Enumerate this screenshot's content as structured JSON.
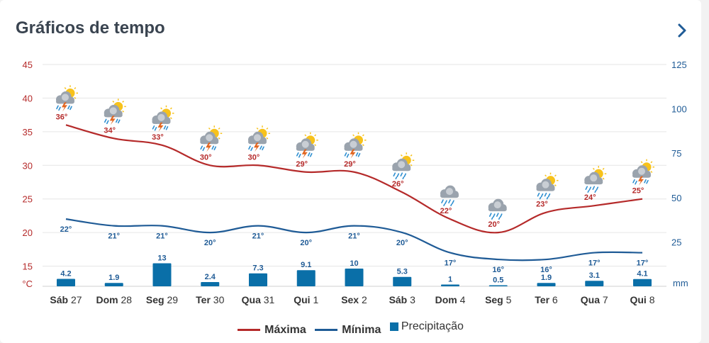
{
  "header": {
    "title": "Gráficos de tempo",
    "next_icon": "chevron-right-icon"
  },
  "colors": {
    "max": "#b52a2a",
    "min": "#1f5b96",
    "precip": "#0a6fa8",
    "axis_left": "#b52a2a",
    "axis_right": "#1f5b96"
  },
  "chart_data": {
    "type": "line",
    "categories": [
      "Sáb 27",
      "Dom 28",
      "Seg 29",
      "Ter 30",
      "Qua 31",
      "Qui 1",
      "Sex 2",
      "Sáb 3",
      "Dom 4",
      "Seg 5",
      "Ter 6",
      "Qua 7",
      "Qui 8"
    ],
    "series": [
      {
        "name": "Máxima",
        "type": "line",
        "axis": "left",
        "values": [
          36,
          34,
          33,
          30,
          30,
          29,
          29,
          26,
          22,
          20,
          23,
          24,
          25
        ],
        "labels": [
          "36°",
          "34°",
          "33°",
          "30°",
          "30°",
          "29°",
          "29°",
          "26°",
          "22°",
          "20°",
          "23°",
          "24°",
          "25°"
        ]
      },
      {
        "name": "Mínima",
        "type": "line",
        "axis": "left",
        "values": [
          22,
          21,
          21,
          20,
          21,
          20,
          21,
          20,
          17,
          16,
          16,
          17,
          17
        ],
        "labels": [
          "22°",
          "21°",
          "21°",
          "20°",
          "21°",
          "20°",
          "21°",
          "20°",
          "17°",
          "16°",
          "16°",
          "17°",
          "17°"
        ]
      },
      {
        "name": "Precipitação",
        "type": "bar",
        "axis": "right",
        "values": [
          4.2,
          1.9,
          13,
          2.4,
          7.3,
          9.1,
          10,
          5.3,
          1,
          0.5,
          1.9,
          3.1,
          4.1
        ],
        "labels": [
          "4.2",
          "1.9",
          "13",
          "2.4",
          "7.3",
          "9.1",
          "10",
          "5.3",
          "1",
          "0.5",
          "1.9",
          "3.1",
          "4.1"
        ]
      }
    ],
    "y_left": {
      "unit": "°C",
      "ticks": [
        "15",
        "20",
        "25",
        "30",
        "35",
        "40",
        "45"
      ],
      "range": [
        12,
        45
      ]
    },
    "y_right": {
      "unit": "mm",
      "ticks": [
        "25",
        "50",
        "75",
        "100",
        "125"
      ],
      "range": [
        0,
        125
      ]
    },
    "weather_icons": [
      "storm-sun-icon",
      "storm-sun-icon",
      "storm-sun-icon",
      "storm-sun-icon",
      "storm-sun-icon",
      "storm-sun-icon",
      "storm-sun-icon",
      "rain-sun-icon",
      "rain-cloud-icon",
      "rain-cloud-icon",
      "rain-sun-icon",
      "rain-sun-icon",
      "storm-sun-icon"
    ],
    "grid": true,
    "legend_position": "bottom"
  }
}
